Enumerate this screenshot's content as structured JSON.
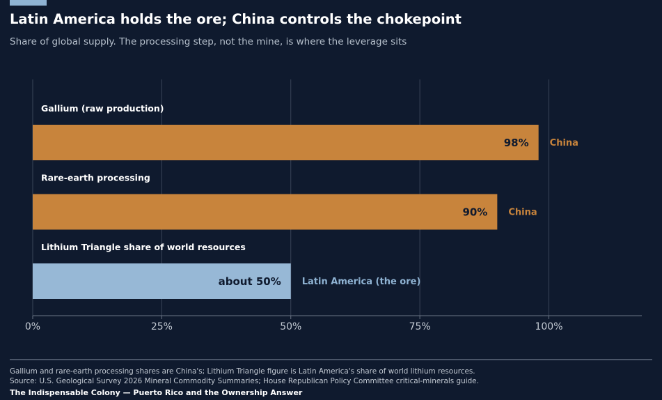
{
  "header": {
    "title": "Latin America holds the ore; China controls the chokepoint",
    "subtitle": "Share of global supply. The processing step, not the mine, is where the leverage sits"
  },
  "chart_data": {
    "type": "bar",
    "orientation": "horizontal",
    "categories": [
      "Gallium (raw production)",
      "Rare-earth processing",
      "Lithium Triangle share of world resources"
    ],
    "values": [
      98,
      90,
      50
    ],
    "value_labels": [
      "98%",
      "90%",
      "about 50%"
    ],
    "holders": [
      "China",
      "China",
      "Latin America (the ore)"
    ],
    "colors": [
      "#c8843c",
      "#c8843c",
      "#97b8d6"
    ],
    "holder_colors": [
      "#c8843c",
      "#c8843c",
      "#8fb3d3"
    ],
    "xlim": [
      0,
      100
    ],
    "xticks": [
      0,
      25,
      50,
      75,
      100
    ],
    "xtick_labels": [
      "0%",
      "25%",
      "50%",
      "75%",
      "100%"
    ],
    "grid": true,
    "xlabel": "",
    "ylabel": ""
  },
  "footer": {
    "note": "Gallium and rare-earth processing shares are China's; Lithium Triangle figure is Latin America's share of world lithium resources. Source: U.S. Geological Survey 2026 Mineral Commodity Summaries; House Republican Policy Committee critical-minerals guide.",
    "credit": "The Indispensable Colony  —  Puerto Rico and the Ownership Answer"
  }
}
